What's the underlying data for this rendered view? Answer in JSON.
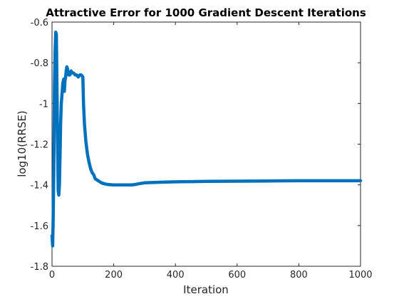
{
  "chart_data": {
    "type": "line",
    "title": "Attractive Error for 1000 Gradient Descent Iterations",
    "xlabel": "Iteration",
    "ylabel": "log10(RRSE)",
    "xlim": [
      0,
      1000
    ],
    "ylim": [
      -1.8,
      -0.6
    ],
    "xticks": [
      0,
      200,
      400,
      600,
      800,
      1000
    ],
    "xtick_labels": [
      "0",
      "200",
      "400",
      "600",
      "800",
      "1000"
    ],
    "yticks": [
      -1.8,
      -1.6,
      -1.4,
      -1.2,
      -1.0,
      -0.8,
      -0.6
    ],
    "ytick_labels": [
      "-1.8",
      "-1.6",
      "-1.4",
      "-1.2",
      "-1",
      "-0.8",
      "-0.6"
    ],
    "grid": false,
    "series": [
      {
        "color": "#0072BD",
        "x": [
          0,
          2,
          4,
          6,
          8,
          10,
          12,
          14,
          16,
          18,
          20,
          22,
          24,
          26,
          28,
          30,
          32,
          35,
          38,
          40,
          42,
          44,
          46,
          48,
          50,
          52,
          54,
          56,
          58,
          60,
          62,
          65,
          70,
          75,
          80,
          85,
          90,
          95,
          100,
          102,
          105,
          110,
          115,
          120,
          125,
          130,
          135,
          140,
          150,
          160,
          170,
          180,
          200,
          220,
          240,
          260,
          270,
          280,
          300,
          350,
          400,
          450,
          500,
          600,
          700,
          800,
          900,
          1000
        ],
        "y": [
          -1.65,
          -1.7,
          -1.55,
          -1.3,
          -0.9,
          -0.75,
          -0.65,
          -0.66,
          -0.9,
          -1.2,
          -1.43,
          -1.45,
          -1.4,
          -1.25,
          -1.1,
          -1.0,
          -0.96,
          -0.9,
          -0.88,
          -0.94,
          -0.89,
          -0.87,
          -0.84,
          -0.82,
          -0.83,
          -0.85,
          -0.86,
          -0.85,
          -0.86,
          -0.85,
          -0.84,
          -0.85,
          -0.85,
          -0.86,
          -0.86,
          -0.87,
          -0.86,
          -0.86,
          -0.87,
          -1.0,
          -1.1,
          -1.19,
          -1.25,
          -1.29,
          -1.32,
          -1.34,
          -1.35,
          -1.37,
          -1.38,
          -1.39,
          -1.395,
          -1.398,
          -1.4,
          -1.4,
          -1.4,
          -1.4,
          -1.398,
          -1.395,
          -1.39,
          -1.387,
          -1.385,
          -1.384,
          -1.383,
          -1.382,
          -1.381,
          -1.38,
          -1.38,
          -1.38
        ]
      }
    ]
  }
}
